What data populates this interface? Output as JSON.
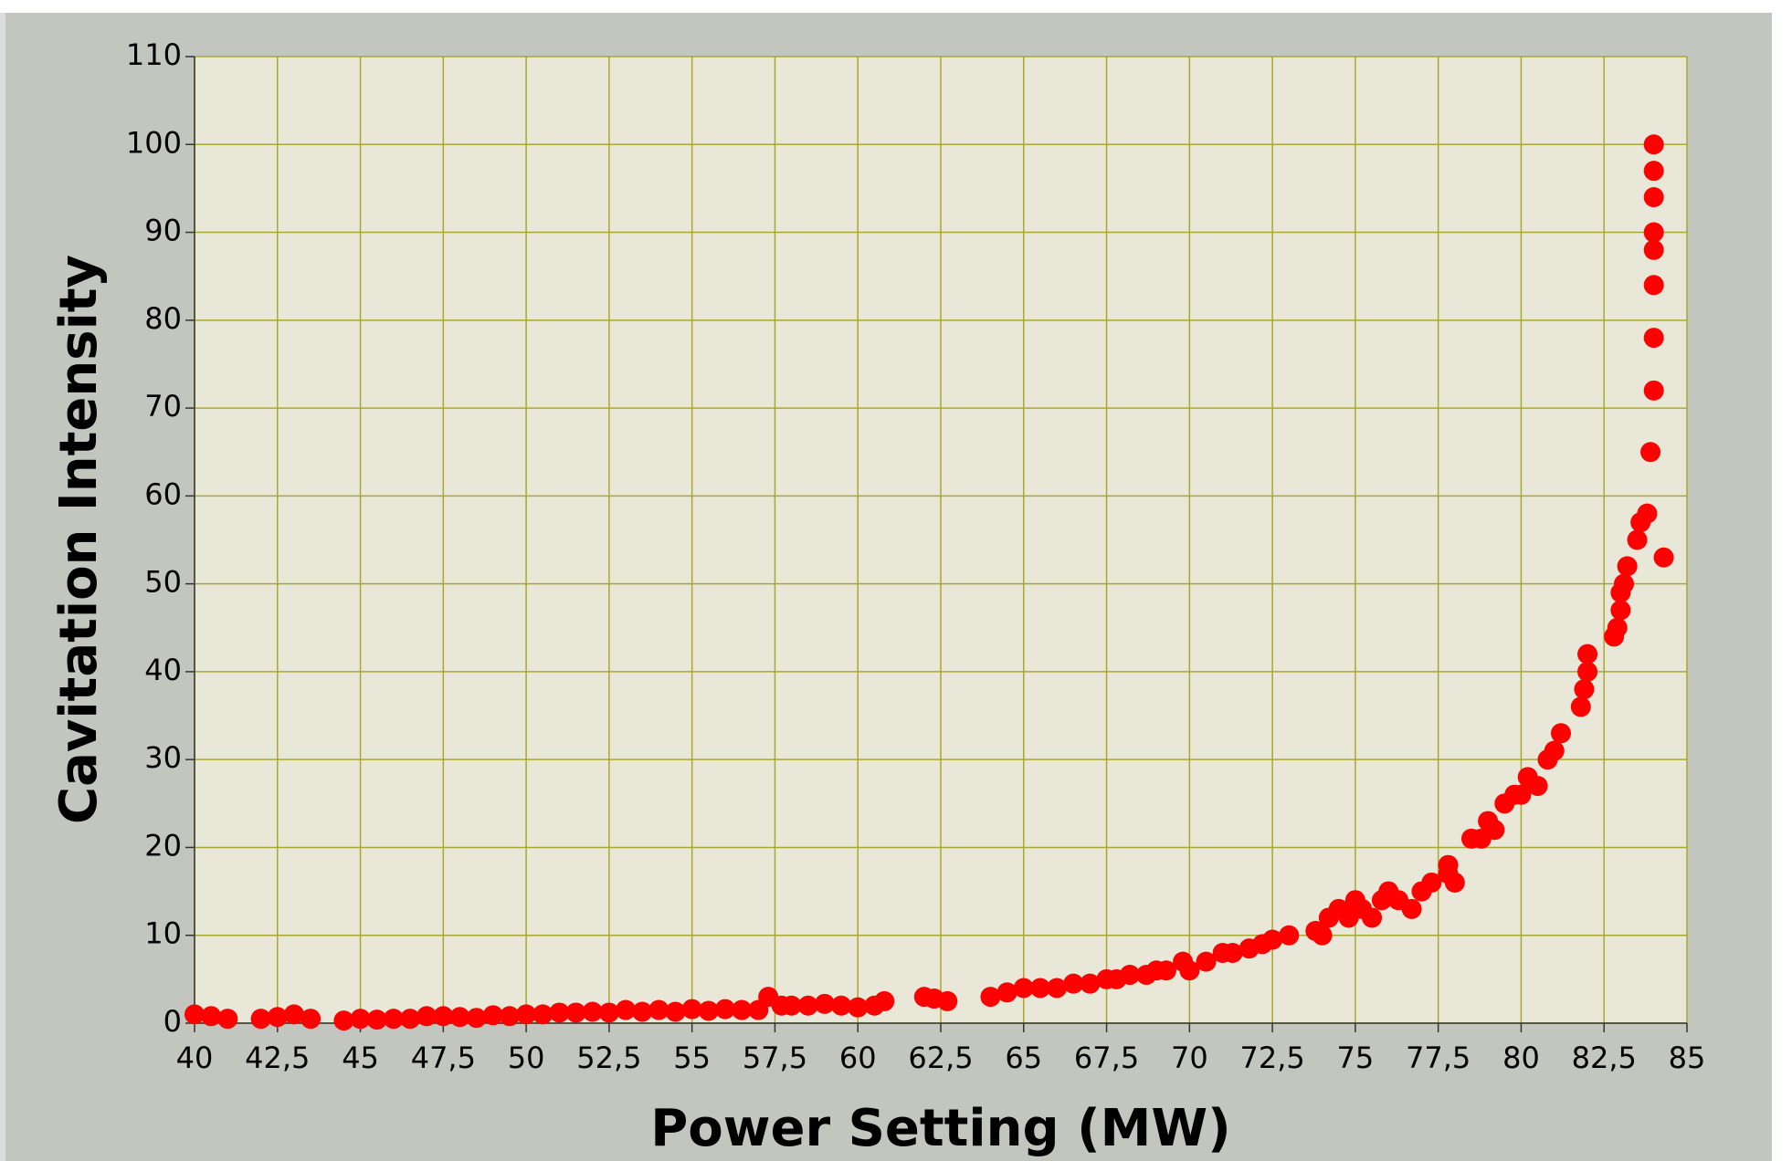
{
  "chart_data": {
    "type": "scatter",
    "x_label": "Power Setting (MW)",
    "y_label": "Cavitation Intensity",
    "color": "#ff0000",
    "grid": true,
    "xlim": [
      40,
      85
    ],
    "ylim": [
      0,
      110
    ],
    "xticks": [
      40,
      {
        "value": 42.5,
        "label": "42,5"
      },
      45,
      {
        "value": 47.5,
        "label": "47,5"
      },
      50,
      {
        "value": 52.5,
        "label": "52,5"
      },
      55,
      {
        "value": 57.5,
        "label": "57,5"
      },
      60,
      {
        "value": 62.5,
        "label": "62,5"
      },
      65,
      {
        "value": 67.5,
        "label": "67,5"
      },
      70,
      {
        "value": 72.5,
        "label": "72,5"
      },
      75,
      {
        "value": 77.5,
        "label": "77,5"
      },
      80,
      {
        "value": 82.5,
        "label": "82,5"
      },
      85
    ],
    "yticks": [
      0,
      10,
      20,
      30,
      40,
      50,
      60,
      70,
      80,
      90,
      100,
      110
    ],
    "x": [
      40,
      40.5,
      41,
      42,
      42.5,
      43,
      43.5,
      44.5,
      45,
      45.5,
      46,
      46.5,
      47,
      47.5,
      48,
      48.5,
      49,
      49.5,
      50,
      50.5,
      51,
      51.5,
      52,
      52.5,
      53,
      53.5,
      54,
      54.5,
      55,
      55.5,
      56,
      56.5,
      57,
      57.3,
      57.7,
      58,
      58.5,
      59,
      59.5,
      60,
      60.5,
      60.8,
      62,
      62.3,
      62.7,
      64,
      64.5,
      65,
      65.5,
      66,
      66.5,
      67,
      67.5,
      67.8,
      68.2,
      68.7,
      69,
      69.3,
      69.8,
      70,
      70.5,
      71,
      71.3,
      71.8,
      72.2,
      72.5,
      73,
      73.8,
      74,
      74.2,
      74.5,
      74.8,
      75,
      75.2,
      75.5,
      75.8,
      76,
      76.3,
      76.7,
      77,
      77.3,
      77.8,
      77.8,
      78,
      78.5,
      78.8,
      79,
      79.2,
      79.5,
      79.8,
      80,
      80.2,
      80.5,
      80.8,
      81,
      81.2,
      81.8,
      81.9,
      82,
      82,
      82.8,
      82.9,
      83,
      83,
      83.1,
      83.2,
      83.5,
      83.6,
      83.8,
      83.9,
      84,
      84,
      84,
      84,
      84,
      84,
      84,
      84,
      84.3
    ],
    "values": [
      1,
      0.8,
      0.5,
      0.5,
      0.7,
      1,
      0.5,
      0.3,
      0.5,
      0.4,
      0.5,
      0.5,
      0.8,
      0.8,
      0.7,
      0.6,
      0.9,
      0.8,
      1,
      1,
      1.2,
      1.2,
      1.3,
      1.2,
      1.5,
      1.3,
      1.5,
      1.3,
      1.6,
      1.4,
      1.6,
      1.5,
      1.5,
      3,
      2,
      2,
      2,
      2.2,
      2,
      1.8,
      2,
      2.5,
      3,
      2.8,
      2.5,
      3,
      3.5,
      4,
      4,
      4,
      4.5,
      4.5,
      5,
      5,
      5.5,
      5.5,
      6,
      6,
      7,
      6,
      7,
      8,
      8,
      8.5,
      9,
      9.5,
      10,
      10.5,
      10,
      12,
      13,
      12,
      14,
      13,
      12,
      14,
      15,
      14,
      13,
      15,
      16,
      17,
      18,
      16,
      21,
      21,
      23,
      22,
      25,
      26,
      26,
      28,
      27,
      30,
      31,
      33,
      36,
      38,
      40,
      42,
      44,
      45,
      47,
      49,
      50,
      52,
      55,
      57,
      58,
      65,
      72,
      78,
      84,
      88,
      90,
      94,
      97,
      100,
      53
    ]
  }
}
